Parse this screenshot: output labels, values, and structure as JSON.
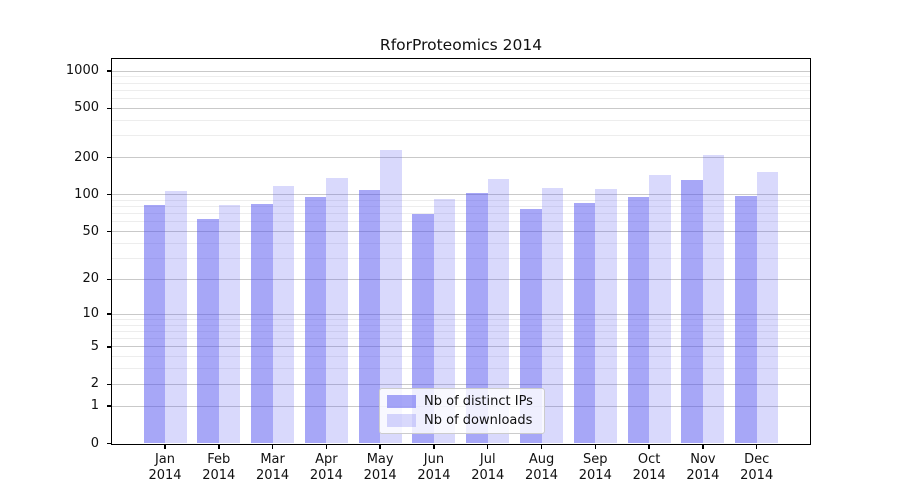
{
  "figure": {
    "background": "#ffffff"
  },
  "chart_data": {
    "type": "bar",
    "title": "RforProteomics 2014",
    "categories": [
      {
        "month": "Jan",
        "year": "2014"
      },
      {
        "month": "Feb",
        "year": "2014"
      },
      {
        "month": "Mar",
        "year": "2014"
      },
      {
        "month": "Apr",
        "year": "2014"
      },
      {
        "month": "May",
        "year": "2014"
      },
      {
        "month": "Jun",
        "year": "2014"
      },
      {
        "month": "Jul",
        "year": "2014"
      },
      {
        "month": "Aug",
        "year": "2014"
      },
      {
        "month": "Sep",
        "year": "2014"
      },
      {
        "month": "Oct",
        "year": "2014"
      },
      {
        "month": "Nov",
        "year": "2014"
      },
      {
        "month": "Dec",
        "year": "2014"
      }
    ],
    "series": [
      {
        "name": "Nb of distinct IPs",
        "color": "rgba(80,80,240,0.50)",
        "values": [
          82,
          63,
          84,
          95,
          110,
          70,
          104,
          76,
          85,
          96,
          132,
          97
        ]
      },
      {
        "name": "Nb of downloads",
        "color": "rgba(80,80,240,0.22)",
        "values": [
          107,
          82,
          118,
          137,
          229,
          93,
          134,
          113,
          111,
          145,
          209,
          153
        ]
      }
    ],
    "yscale": "log1p",
    "ylim": [
      0,
      1250
    ],
    "yticks": [
      0,
      1,
      2,
      5,
      10,
      20,
      50,
      100,
      200,
      500,
      1000
    ],
    "yticks_minor": [
      3,
      4,
      6,
      7,
      8,
      9,
      30,
      40,
      60,
      70,
      80,
      90,
      300,
      400,
      600,
      700,
      800,
      900
    ],
    "grid": {
      "major_color": "#c9c9c9",
      "minor_color": "#ededed"
    },
    "axis_color": "#000000",
    "legend_position": "lower center"
  }
}
